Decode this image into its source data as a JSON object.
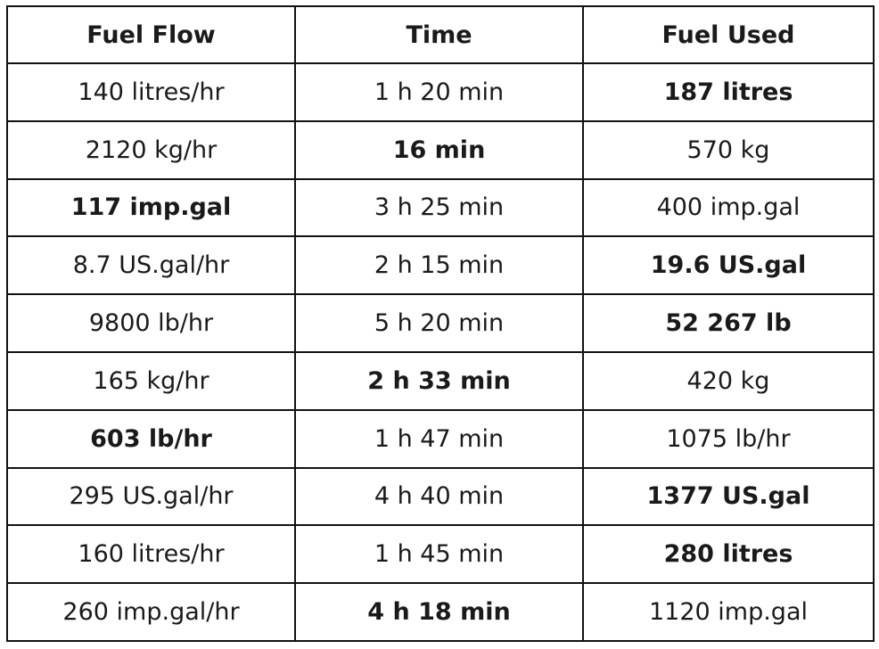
{
  "table": {
    "headers": [
      "Fuel Flow",
      "Time",
      "Fuel Used"
    ],
    "rows": [
      {
        "cells": [
          "140 litres/hr",
          "1 h 20 min",
          "187 litres"
        ],
        "bold": [
          false,
          false,
          true
        ]
      },
      {
        "cells": [
          "2120 kg/hr",
          "16 min",
          "570 kg"
        ],
        "bold": [
          false,
          true,
          false
        ]
      },
      {
        "cells": [
          "117 imp.gal",
          "3 h 25 min",
          "400 imp.gal"
        ],
        "bold": [
          true,
          false,
          false
        ]
      },
      {
        "cells": [
          "8.7 US.gal/hr",
          "2 h 15 min",
          "19.6 US.gal"
        ],
        "bold": [
          false,
          false,
          true
        ]
      },
      {
        "cells": [
          "9800 lb/hr",
          "5 h 20 min",
          "52 267 lb"
        ],
        "bold": [
          false,
          false,
          true
        ]
      },
      {
        "cells": [
          "165 kg/hr",
          "2 h 33 min",
          "420 kg"
        ],
        "bold": [
          false,
          true,
          false
        ]
      },
      {
        "cells": [
          "603 lb/hr",
          "1 h 47 min",
          "1075 lb/hr"
        ],
        "bold": [
          true,
          false,
          false
        ]
      },
      {
        "cells": [
          "295 US.gal/hr",
          "4 h 40 min",
          "1377 US.gal"
        ],
        "bold": [
          false,
          false,
          true
        ]
      },
      {
        "cells": [
          "160 litres/hr",
          "1 h 45 min",
          "280 litres"
        ],
        "bold": [
          false,
          false,
          true
        ]
      },
      {
        "cells": [
          "260 imp.gal/hr",
          "4 h 18 min",
          "1120 imp.gal"
        ],
        "bold": [
          false,
          true,
          false
        ]
      }
    ]
  }
}
